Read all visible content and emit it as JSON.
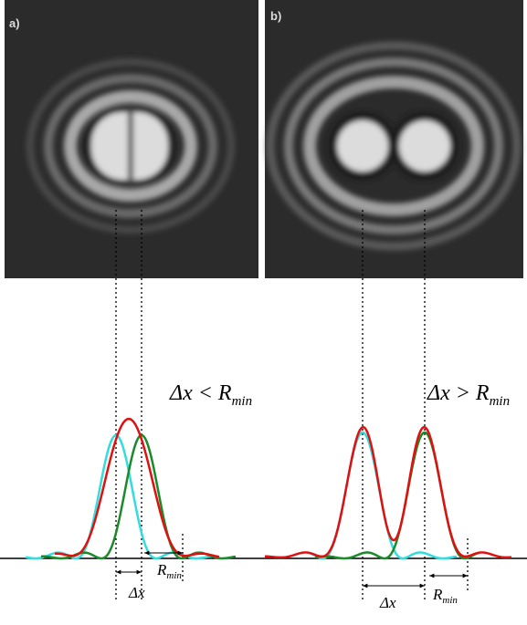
{
  "panels": [
    {
      "label": "a)",
      "relation": {
        "main": "Δx < R",
        "sub": "min"
      },
      "dx_label": "Δx",
      "r_label": {
        "main": "R",
        "sub": "min"
      }
    },
    {
      "label": "b)",
      "relation": {
        "main": "Δx > R",
        "sub": "min"
      },
      "dx_label": "Δx",
      "r_label": {
        "main": "R",
        "sub": "min"
      }
    }
  ]
}
